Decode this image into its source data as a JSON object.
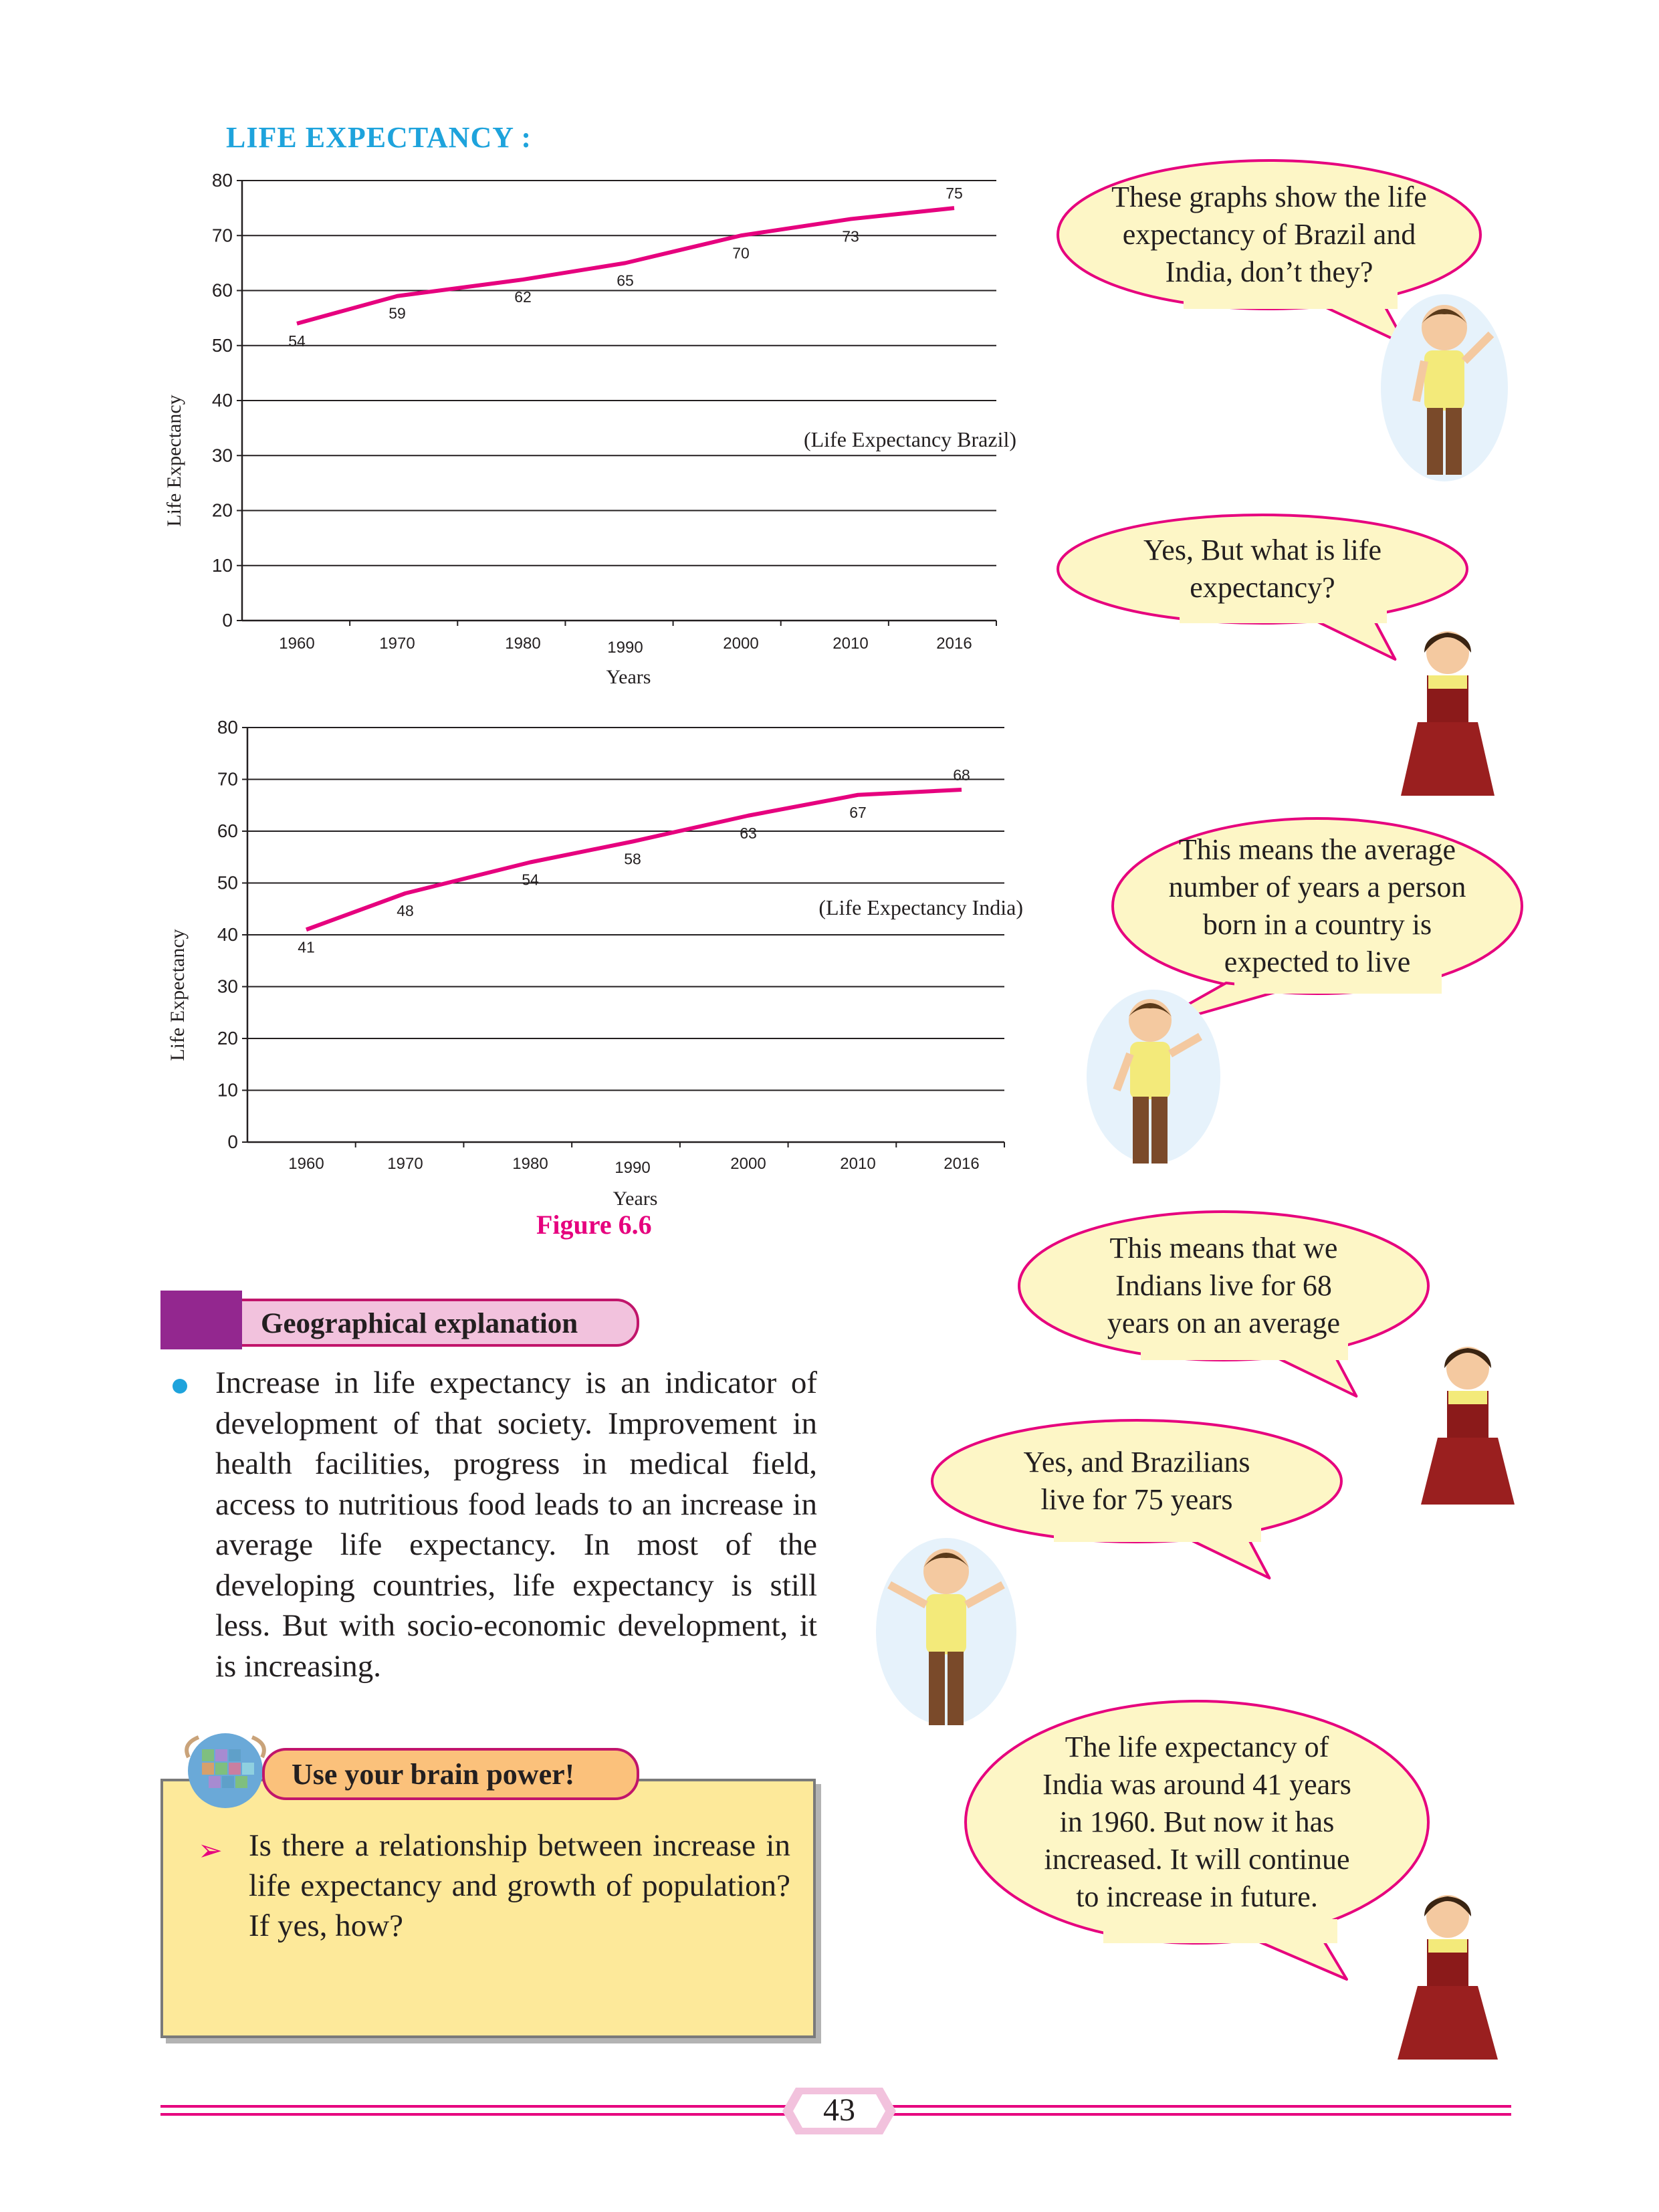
{
  "section_title": "LIFE EXPECTANCY :",
  "figure_caption": "Figure 6.6",
  "chart_data": [
    {
      "type": "line",
      "series_note": "(Life Expectancy Brazil)",
      "xlabel": "Years",
      "ylabel": "Life Expectancy",
      "categories": [
        "1960",
        "1970",
        "1980",
        "1990",
        "2000",
        "2010",
        "2016"
      ],
      "series": [
        {
          "values": [
            54,
            59,
            62,
            65,
            70,
            73,
            75
          ]
        }
      ],
      "ylim": [
        0,
        80
      ],
      "yticks": [
        0,
        10,
        20,
        30,
        40,
        50,
        60,
        70,
        80
      ],
      "grid": true,
      "line_color": "#e6007e"
    },
    {
      "type": "line",
      "series_note": "(Life Expectancy India)",
      "xlabel": "Years",
      "ylabel": "Life Expectancy",
      "categories": [
        "1960",
        "1970",
        "1980",
        "1990",
        "2000",
        "2010",
        "2016"
      ],
      "series": [
        {
          "values": [
            41,
            48,
            54,
            58,
            63,
            67,
            68
          ]
        }
      ],
      "ylim": [
        0,
        80
      ],
      "yticks": [
        0,
        10,
        20,
        30,
        40,
        50,
        60,
        70,
        80
      ],
      "grid": true,
      "line_color": "#e6007e"
    }
  ],
  "geo": {
    "header": "Geographical explanation",
    "paragraph": "Increase in life expectancy is an indicator of development of that society. Improvement in health facilities, progress in medical field, access to nutritious food leads to an increase in average life expectancy. In most of the developing countries, life expectancy is still less. But with socio-economic development,  it is increasing."
  },
  "brain_power": {
    "header": "Use your brain power!",
    "bullet": "➢",
    "question": "Is there a relationship between increase in life expectancy and growth of population? If yes, how?"
  },
  "bubbles": [
    {
      "lines": [
        "These graphs show the life",
        "expectancy of Brazil and",
        "India, don’t they?"
      ]
    },
    {
      "lines": [
        "Yes, But what is life",
        "expectancy?"
      ]
    },
    {
      "lines": [
        "This means the average",
        "number of years a person",
        "born in a country is",
        "expected to live"
      ]
    },
    {
      "lines": [
        "This means that we",
        "Indians live for 68",
        "years on an average"
      ]
    },
    {
      "lines": [
        "Yes, and Brazilians",
        "live for 75 years"
      ]
    },
    {
      "lines": [
        "The life expectancy of",
        "India was around 41 years",
        "in 1960. But now it has",
        "increased. It will continue",
        "to increase in future."
      ]
    }
  ],
  "page_number": "43",
  "colors": {
    "accent_pink": "#e6007e",
    "title_blue": "#1ea3dc",
    "purple": "#93278f",
    "bubble_fill": "#fdf6c6",
    "box_fill": "#fde99a"
  }
}
